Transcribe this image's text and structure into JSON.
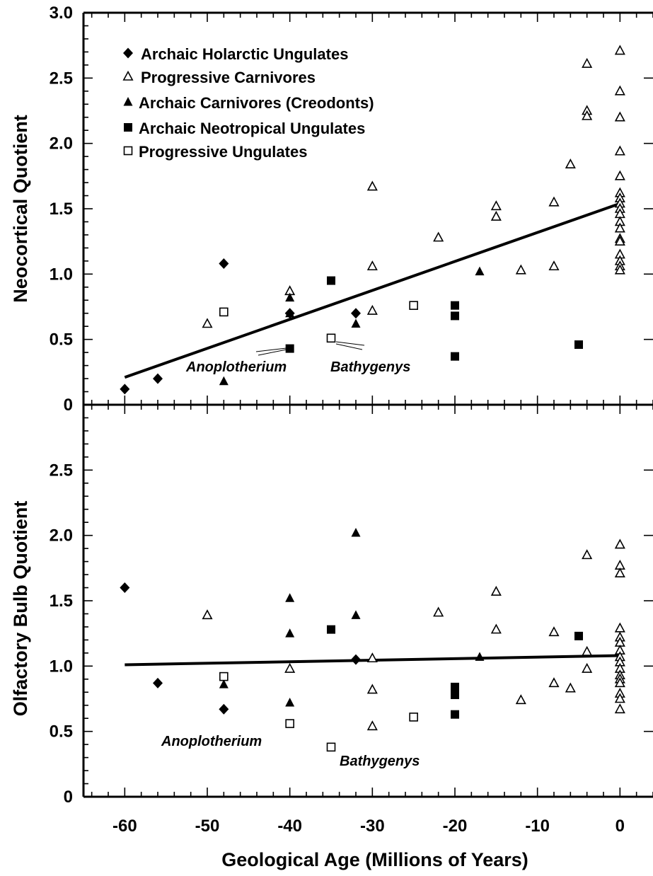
{
  "chart_data": [
    {
      "type": "scatter",
      "ylabel": "Neocortical Quotient",
      "xlim": [
        -65,
        4
      ],
      "ylim": [
        0,
        3.0
      ],
      "yticks": [
        {
          "value": 0,
          "label": "0"
        },
        {
          "value": 0.5,
          "label": "0.5"
        },
        {
          "value": 1.0,
          "label": "1.0"
        },
        {
          "value": 1.5,
          "label": "1.5"
        },
        {
          "value": 2.0,
          "label": "2.0"
        },
        {
          "value": 2.5,
          "label": "2.5"
        },
        {
          "value": 3.0,
          "label": "3.0"
        }
      ],
      "legend": {
        "placement": "top-left",
        "entries": [
          {
            "marker": "filled-diamond",
            "label": "Archaic Holarctic Ungulates"
          },
          {
            "marker": "open-triangle",
            "label": "Progressive Carnivores"
          },
          {
            "marker": "filled-triangle",
            "label": "Archaic Carnivores (Creodonts)"
          },
          {
            "marker": "filled-square",
            "label": "Archaic Neotropical Ungulates"
          },
          {
            "marker": "open-square",
            "label": "Progressive Ungulates"
          }
        ]
      },
      "series": [
        {
          "marker": "filled-diamond",
          "points": [
            [
              -60,
              0.12
            ],
            [
              -56,
              0.2
            ],
            [
              -48,
              1.08
            ],
            [
              -40,
              0.7
            ],
            [
              -32,
              0.7
            ]
          ]
        },
        {
          "marker": "open-triangle",
          "points": [
            [
              -50,
              0.62
            ],
            [
              -40,
              0.87
            ],
            [
              -30,
              1.67
            ],
            [
              -30,
              1.06
            ],
            [
              -30,
              0.72
            ],
            [
              -22,
              1.28
            ],
            [
              -15,
              1.52
            ],
            [
              -15,
              1.44
            ],
            [
              -12,
              1.03
            ],
            [
              -8,
              1.55
            ],
            [
              -8,
              1.06
            ],
            [
              -6,
              1.84
            ],
            [
              -4,
              2.61
            ],
            [
              -4,
              2.25
            ],
            [
              -4,
              2.21
            ],
            [
              0,
              2.71
            ],
            [
              0,
              2.4
            ],
            [
              0,
              2.2
            ],
            [
              0,
              1.94
            ],
            [
              0,
              1.75
            ],
            [
              0,
              1.62
            ],
            [
              0,
              1.58
            ],
            [
              0,
              1.54
            ],
            [
              0,
              1.5
            ],
            [
              0,
              1.46
            ],
            [
              0,
              1.4
            ],
            [
              0,
              1.35
            ],
            [
              0,
              1.27
            ],
            [
              0,
              1.25
            ],
            [
              0,
              1.15
            ],
            [
              0,
              1.1
            ],
            [
              0,
              1.06
            ],
            [
              0,
              1.03
            ]
          ]
        },
        {
          "marker": "filled-triangle",
          "points": [
            [
              -48,
              0.18
            ],
            [
              -40,
              0.82
            ],
            [
              -40,
              0.7
            ],
            [
              -32,
              0.62
            ],
            [
              -17,
              1.02
            ]
          ]
        },
        {
          "marker": "filled-square",
          "points": [
            [
              -40,
              0.43
            ],
            [
              -35,
              0.95
            ],
            [
              -20,
              0.76
            ],
            [
              -20,
              0.68
            ],
            [
              -20,
              0.37
            ],
            [
              -5,
              0.46
            ]
          ]
        },
        {
          "marker": "open-square",
          "points": [
            [
              -48,
              0.71
            ],
            [
              -35,
              0.51
            ],
            [
              -25,
              0.76
            ]
          ]
        }
      ],
      "trendline": {
        "x": [
          -60,
          0
        ],
        "y": [
          0.21,
          1.54
        ]
      },
      "annotations": [
        {
          "text": "Anoplotherium",
          "target": [
            -40,
            0.43
          ]
        },
        {
          "text": "Bathygenys",
          "target": [
            -35,
            0.51
          ]
        }
      ]
    },
    {
      "type": "scatter",
      "ylabel": "Olfactory Bulb Quotient",
      "xlabel": "Geological Age (Millions of Years)",
      "xlim": [
        -65,
        4
      ],
      "ylim": [
        0,
        3.0
      ],
      "xticks": [
        {
          "value": -60,
          "label": "-60"
        },
        {
          "value": -50,
          "label": "-50"
        },
        {
          "value": -40,
          "label": "-40"
        },
        {
          "value": -30,
          "label": "-30"
        },
        {
          "value": -20,
          "label": "-20"
        },
        {
          "value": -10,
          "label": "-10"
        },
        {
          "value": 0,
          "label": "0"
        }
      ],
      "yticks": [
        {
          "value": 0,
          "label": "0"
        },
        {
          "value": 0.5,
          "label": "0.5"
        },
        {
          "value": 1.0,
          "label": "1.0"
        },
        {
          "value": 1.5,
          "label": "1.5"
        },
        {
          "value": 2.0,
          "label": "2.0"
        },
        {
          "value": 2.5,
          "label": "2.5"
        }
      ],
      "series": [
        {
          "marker": "filled-diamond",
          "points": [
            [
              -60,
              1.6
            ],
            [
              -56,
              0.87
            ],
            [
              -48,
              0.67
            ],
            [
              -32,
              1.05
            ]
          ]
        },
        {
          "marker": "open-triangle",
          "points": [
            [
              -50,
              1.39
            ],
            [
              -40,
              0.98
            ],
            [
              -30,
              1.06
            ],
            [
              -30,
              0.82
            ],
            [
              -30,
              0.54
            ],
            [
              -22,
              1.41
            ],
            [
              -15,
              1.57
            ],
            [
              -15,
              1.28
            ],
            [
              -12,
              0.74
            ],
            [
              -8,
              1.26
            ],
            [
              -8,
              0.87
            ],
            [
              -6,
              0.83
            ],
            [
              -4,
              1.85
            ],
            [
              -4,
              1.11
            ],
            [
              -4,
              0.98
            ],
            [
              0,
              1.93
            ],
            [
              0,
              1.77
            ],
            [
              0,
              1.71
            ],
            [
              0,
              1.29
            ],
            [
              0,
              1.22
            ],
            [
              0,
              1.18
            ],
            [
              0,
              1.12
            ],
            [
              0,
              1.07
            ],
            [
              0,
              1.03
            ],
            [
              0,
              0.98
            ],
            [
              0,
              0.93
            ],
            [
              0,
              0.9
            ],
            [
              0,
              0.87
            ],
            [
              0,
              0.79
            ],
            [
              0,
              0.75
            ],
            [
              0,
              0.67
            ]
          ]
        },
        {
          "marker": "filled-triangle",
          "points": [
            [
              -48,
              0.86
            ],
            [
              -40,
              1.52
            ],
            [
              -40,
              1.25
            ],
            [
              -40,
              0.72
            ],
            [
              -32,
              2.02
            ],
            [
              -32,
              1.39
            ],
            [
              -17,
              1.07
            ]
          ]
        },
        {
          "marker": "filled-square",
          "points": [
            [
              -35,
              1.28
            ],
            [
              -20,
              0.84
            ],
            [
              -20,
              0.78
            ],
            [
              -20,
              0.63
            ],
            [
              -5,
              1.23
            ]
          ]
        },
        {
          "marker": "open-square",
          "points": [
            [
              -48,
              0.92
            ],
            [
              -40,
              0.56
            ],
            [
              -35,
              0.38
            ],
            [
              -25,
              0.61
            ]
          ]
        }
      ],
      "trendline": {
        "x": [
          -60,
          0
        ],
        "y": [
          1.01,
          1.08
        ]
      },
      "annotations": [
        {
          "text": "Anoplotherium",
          "target": [
            -40,
            0.56
          ]
        },
        {
          "text": "Bathygenys",
          "target": [
            -35,
            0.38
          ]
        }
      ]
    }
  ]
}
